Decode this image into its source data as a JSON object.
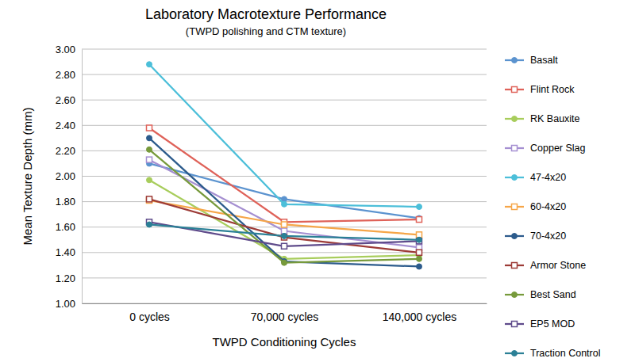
{
  "chart_data": {
    "type": "line",
    "title": "Laboratory Macrotexture Performance",
    "subtitle": "(TWPD polishing and CTM texture)",
    "x_label": "TWPD Conditioning Cycles",
    "y_label": "Mean Texture Depth (mm)",
    "categories": [
      "0 cycles",
      "70,000 cycles",
      "140,000 cycles"
    ],
    "ylim": [
      1.0,
      3.0
    ],
    "yticks": [
      {
        "value": 1.0,
        "label": "1.00"
      },
      {
        "value": 1.2,
        "label": "1.20"
      },
      {
        "value": 1.4,
        "label": "1.40"
      },
      {
        "value": 1.6,
        "label": "1.60"
      },
      {
        "value": 1.8,
        "label": "1.80"
      },
      {
        "value": 2.0,
        "label": "2.00"
      },
      {
        "value": 2.2,
        "label": "2.20"
      },
      {
        "value": 2.4,
        "label": "2.40"
      },
      {
        "value": 2.6,
        "label": "2.60"
      },
      {
        "value": 2.8,
        "label": "2.80"
      },
      {
        "value": 3.0,
        "label": "3.00"
      }
    ],
    "grid": true,
    "legend": "right",
    "series": [
      {
        "name": "Basalt",
        "color": "#5b93cf",
        "marker": "circle",
        "values": [
          2.1,
          1.82,
          1.67
        ]
      },
      {
        "name": "Flint Rock",
        "color": "#df6259",
        "marker": "square",
        "values": [
          2.38,
          1.64,
          1.66
        ]
      },
      {
        "name": "RK Bauxite",
        "color": "#a8cd5c",
        "marker": "circle",
        "values": [
          1.97,
          1.35,
          1.38
        ]
      },
      {
        "name": "Copper Slag",
        "color": "#a58fd1",
        "marker": "square",
        "values": [
          2.13,
          1.57,
          1.44
        ]
      },
      {
        "name": "47-4x20",
        "color": "#4cbfd9",
        "marker": "circle",
        "values": [
          2.88,
          1.78,
          1.76
        ]
      },
      {
        "name": "60-4x20",
        "color": "#f6a648",
        "marker": "square",
        "values": [
          1.81,
          1.62,
          1.54
        ]
      },
      {
        "name": "70-4x20",
        "color": "#2c5b8c",
        "marker": "circle",
        "values": [
          2.3,
          1.33,
          1.29
        ]
      },
      {
        "name": "Armor Stone",
        "color": "#9d3b37",
        "marker": "square",
        "values": [
          1.82,
          1.52,
          1.4
        ]
      },
      {
        "name": "Best Sand",
        "color": "#779a3b",
        "marker": "circle",
        "values": [
          2.21,
          1.32,
          1.35
        ]
      },
      {
        "name": "EP5 MOD",
        "color": "#5f4b8b",
        "marker": "square",
        "values": [
          1.64,
          1.45,
          1.49
        ]
      },
      {
        "name": "Traction Control",
        "color": "#2b8096",
        "marker": "circle",
        "values": [
          1.62,
          1.53,
          1.5
        ]
      }
    ]
  }
}
